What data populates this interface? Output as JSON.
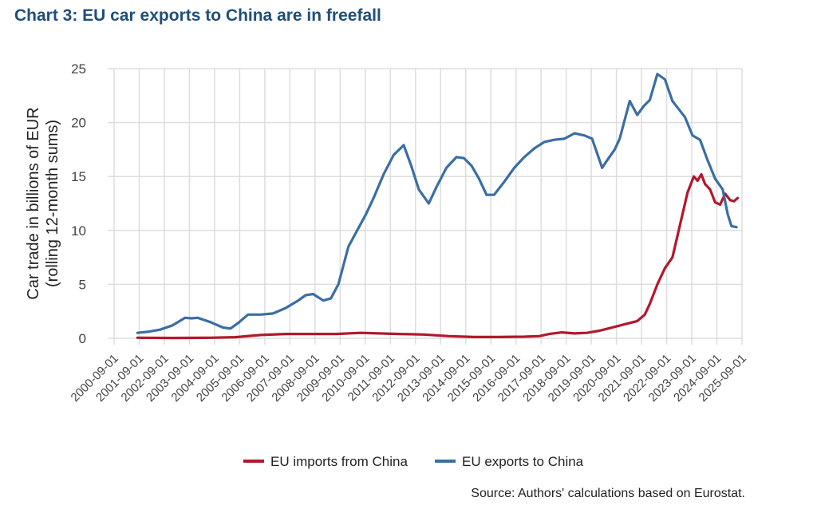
{
  "title": "Chart 3: EU car exports to China are in freefall",
  "source": "Source: Authors' calculations based on Eurostat.",
  "chart_data": {
    "type": "line",
    "title": "Chart 3: EU car exports to China are in freefall",
    "xlabel": "",
    "ylabel": "Car trade in billions of EUR",
    "ylabel_sub": "(rolling 12-month sums)",
    "ylim": [
      0,
      25
    ],
    "yticks": [
      0,
      5,
      10,
      15,
      20,
      25
    ],
    "xlim": [
      2000.67,
      2025.67
    ],
    "xticks": [
      "2000-09-01",
      "2001-09-01",
      "2002-09-01",
      "2003-09-01",
      "2004-09-01",
      "2005-09-01",
      "2006-09-01",
      "2007-09-01",
      "2008-09-01",
      "2009-09-01",
      "2010-09-01",
      "2011-09-01",
      "2012-09-01",
      "2013-09-01",
      "2014-09-01",
      "2015-09-01",
      "2016-09-01",
      "2017-09-01",
      "2018-09-01",
      "2019-09-01",
      "2020-09-01",
      "2021-09-01",
      "2022-09-01",
      "2023-09-01",
      "2024-09-01",
      "2025-09-01"
    ],
    "grid": true,
    "legend": "bottom",
    "series": [
      {
        "name": "EU imports from China",
        "color": "#b2182b",
        "x": [
          2001.6,
          2003.0,
          2004.5,
          2005.5,
          2006.5,
          2007.5,
          2008.5,
          2009.5,
          2010.5,
          2011.2,
          2012.0,
          2013.0,
          2014.0,
          2015.0,
          2016.0,
          2017.0,
          2017.6,
          2018.0,
          2018.5,
          2019.0,
          2019.5,
          2020.0,
          2020.5,
          2021.0,
          2021.5,
          2021.8,
          2022.0,
          2022.3,
          2022.6,
          2022.9,
          2023.1,
          2023.3,
          2023.5,
          2023.75,
          2023.9,
          2024.05,
          2024.2,
          2024.4,
          2024.6,
          2024.8,
          2025.0,
          2025.2,
          2025.35,
          2025.5
        ],
        "values": [
          0.05,
          0.03,
          0.05,
          0.1,
          0.3,
          0.4,
          0.4,
          0.4,
          0.5,
          0.45,
          0.4,
          0.35,
          0.2,
          0.12,
          0.12,
          0.15,
          0.2,
          0.4,
          0.55,
          0.45,
          0.5,
          0.7,
          1.0,
          1.3,
          1.6,
          2.2,
          3.2,
          5.0,
          6.5,
          7.5,
          9.5,
          11.5,
          13.5,
          15.0,
          14.6,
          15.2,
          14.3,
          13.8,
          12.6,
          12.4,
          13.4,
          12.8,
          12.7,
          13.0
        ]
      },
      {
        "name": "EU exports to China",
        "color": "#3a6ea5",
        "x": [
          2001.6,
          2002.0,
          2002.5,
          2003.0,
          2003.5,
          2003.75,
          2004.0,
          2004.5,
          2005.0,
          2005.3,
          2005.6,
          2006.0,
          2006.5,
          2007.0,
          2007.5,
          2008.0,
          2008.3,
          2008.6,
          2009.0,
          2009.3,
          2009.6,
          2010.0,
          2010.3,
          2010.7,
          2011.0,
          2011.4,
          2011.8,
          2012.2,
          2012.5,
          2012.8,
          2013.2,
          2013.5,
          2013.9,
          2014.3,
          2014.6,
          2014.9,
          2015.2,
          2015.5,
          2015.8,
          2016.2,
          2016.6,
          2017.0,
          2017.4,
          2017.8,
          2018.2,
          2018.6,
          2019.0,
          2019.4,
          2019.7,
          2020.1,
          2020.3,
          2020.6,
          2020.8,
          2021.2,
          2021.5,
          2021.75,
          2022.0,
          2022.3,
          2022.6,
          2022.9,
          2023.1,
          2023.4,
          2023.7,
          2024.0,
          2024.3,
          2024.6,
          2024.9,
          2025.1,
          2025.25,
          2025.45
        ],
        "values": [
          0.5,
          0.6,
          0.8,
          1.2,
          1.9,
          1.85,
          1.9,
          1.5,
          1.0,
          0.9,
          1.4,
          2.2,
          2.2,
          2.3,
          2.8,
          3.5,
          4.0,
          4.1,
          3.5,
          3.7,
          5.0,
          8.5,
          9.8,
          11.5,
          13.0,
          15.2,
          17.0,
          17.9,
          16.0,
          13.8,
          12.5,
          14.0,
          15.8,
          16.8,
          16.7,
          16.0,
          14.8,
          13.3,
          13.3,
          14.5,
          15.8,
          16.8,
          17.6,
          18.2,
          18.4,
          18.5,
          19.0,
          18.8,
          18.5,
          15.8,
          16.5,
          17.5,
          18.5,
          22.0,
          20.7,
          21.5,
          22.1,
          24.5,
          24.0,
          22.0,
          21.4,
          20.5,
          18.8,
          18.4,
          16.5,
          14.8,
          13.8,
          11.5,
          10.4,
          10.3
        ]
      }
    ]
  }
}
